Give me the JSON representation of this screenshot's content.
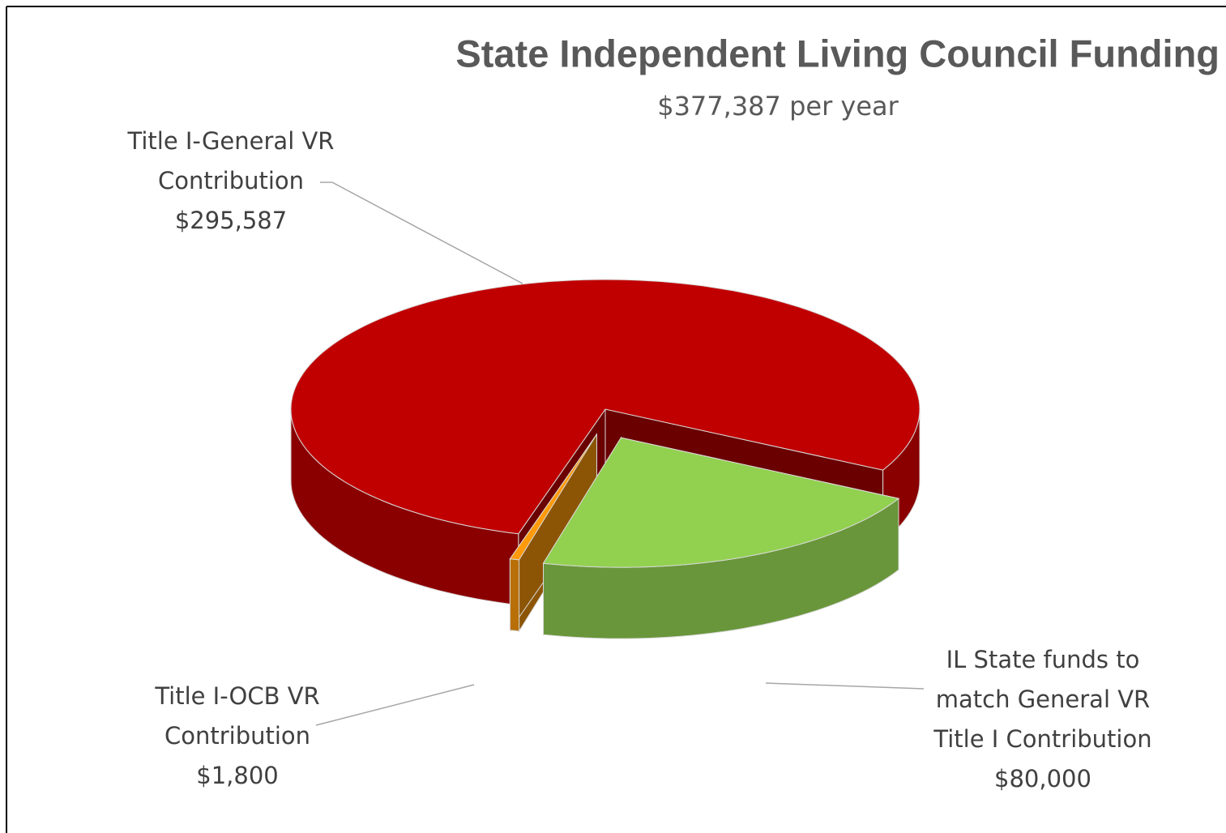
{
  "chart_data": {
    "type": "pie",
    "title": "State Independent Living Council Funding",
    "subtitle": "$377,387 per year",
    "categories": [
      "Title I-General VR Contribution",
      "Title I-OCB VR Contribution",
      "IL State funds to match General VR Title I Contribution"
    ],
    "values": [
      295587,
      1800,
      80000
    ],
    "value_labels": [
      "$295,587",
      "$1,800",
      "$80,000"
    ],
    "colors": [
      "#c00000",
      "#ff9a0a",
      "#92d050"
    ]
  }
}
